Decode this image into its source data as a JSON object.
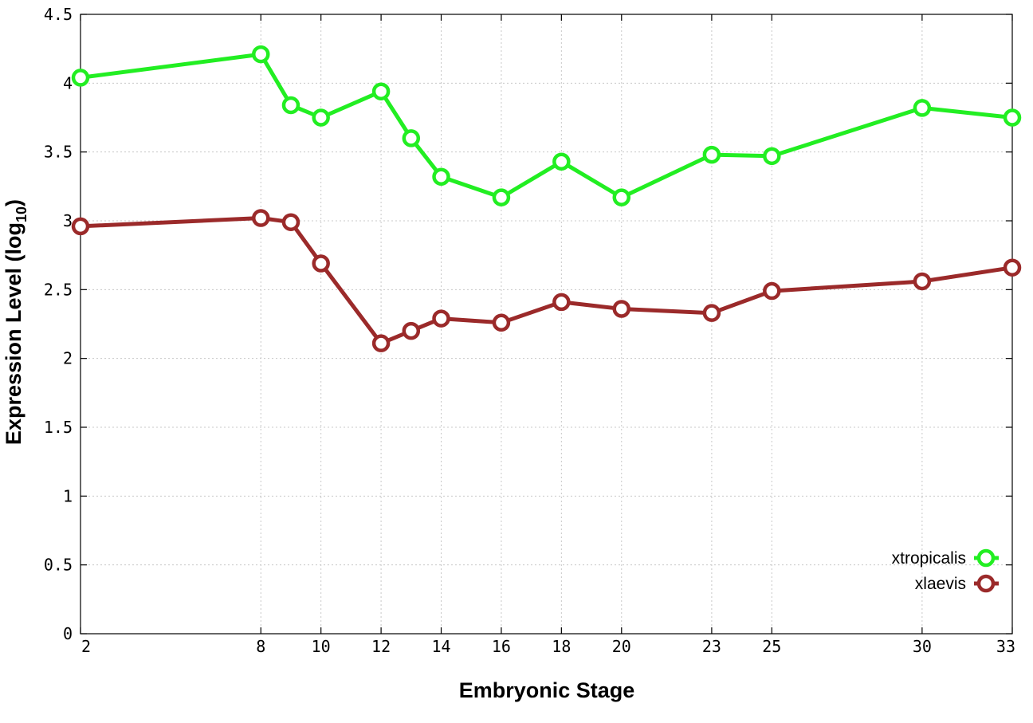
{
  "chart_data": {
    "type": "line",
    "xlabel": "Embryonic Stage",
    "ylabel_main": "Expression Level (log",
    "ylabel_sub": "10",
    "ylabel_close": ")",
    "x_ticks": [
      2,
      8,
      10,
      12,
      14,
      16,
      18,
      20,
      23,
      25,
      30,
      33
    ],
    "y_ticks": [
      "0",
      "0.5",
      "1",
      "1.5",
      "2",
      "2.5",
      "3",
      "3.5",
      "4",
      "4.5"
    ],
    "xlim": [
      2,
      33
    ],
    "ylim": [
      0,
      4.5
    ],
    "grid": true,
    "legend_position": "bottom-right",
    "x": [
      2,
      8,
      9,
      10,
      12,
      13,
      14,
      16,
      18,
      20,
      23,
      25,
      30,
      33
    ],
    "series": [
      {
        "name": "xtropicalis",
        "color": "#22ee22",
        "values": [
          4.04,
          4.21,
          3.84,
          3.75,
          3.94,
          3.6,
          3.32,
          3.17,
          3.43,
          3.17,
          3.48,
          3.47,
          3.82,
          3.75
        ]
      },
      {
        "name": "xlaevis",
        "color": "#9b2a2a",
        "values": [
          2.96,
          3.02,
          2.99,
          2.69,
          2.11,
          2.2,
          2.29,
          2.26,
          2.41,
          2.36,
          2.33,
          2.49,
          2.56,
          2.66
        ]
      }
    ]
  }
}
